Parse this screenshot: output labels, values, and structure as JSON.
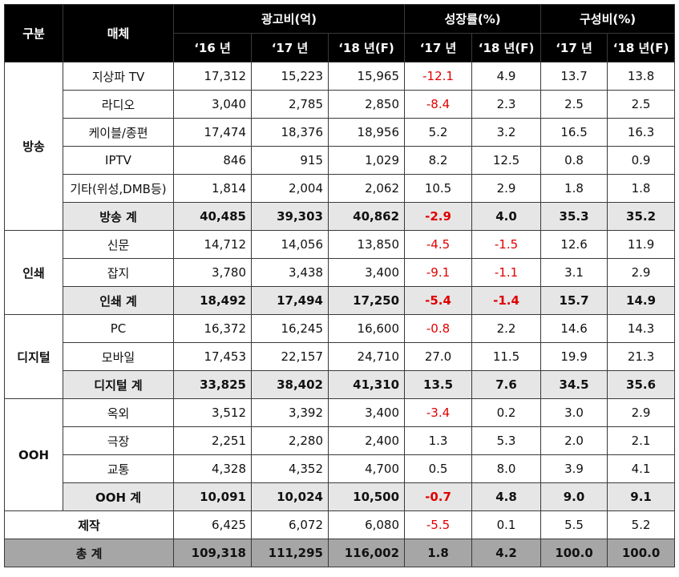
{
  "header": {
    "col_group": "구분",
    "col_media": "매체",
    "ad_cost": "광고비(억)",
    "growth": "성장률(%)",
    "share": "구성비(%)",
    "years_cost": [
      "‘16 년",
      "‘17 년",
      "‘18 년(F)"
    ],
    "years_growth": [
      "‘17 년",
      "‘18 년(F)"
    ],
    "years_share": [
      "‘17 년",
      "‘18 년(F)"
    ]
  },
  "groups": {
    "broadcast": "방송",
    "print": "인쇄",
    "digital": "디지털",
    "ooh": "OOH"
  },
  "rows": [
    {
      "media": "지상파 TV",
      "c16": "17,312",
      "c17": "15,223",
      "c18": "15,965",
      "g17": "-12.1",
      "g18": "4.9",
      "s17": "13.7",
      "s18": "13.8"
    },
    {
      "media": "라디오",
      "c16": "3,040",
      "c17": "2,785",
      "c18": "2,850",
      "g17": "-8.4",
      "g18": "2.3",
      "s17": "2.5",
      "s18": "2.5"
    },
    {
      "media": "케이블/종편",
      "c16": "17,474",
      "c17": "18,376",
      "c18": "18,956",
      "g17": "5.2",
      "g18": "3.2",
      "s17": "16.5",
      "s18": "16.3"
    },
    {
      "media": "IPTV",
      "c16": "846",
      "c17": "915",
      "c18": "1,029",
      "g17": "8.2",
      "g18": "12.5",
      "s17": "0.8",
      "s18": "0.9"
    },
    {
      "media": "기타(위성,DMB등)",
      "c16": "1,814",
      "c17": "2,004",
      "c18": "2,062",
      "g17": "10.5",
      "g18": "2.9",
      "s17": "1.8",
      "s18": "1.8"
    },
    {
      "media": "방송 계",
      "c16": "40,485",
      "c17": "39,303",
      "c18": "40,862",
      "g17": "-2.9",
      "g18": "4.0",
      "s17": "35.3",
      "s18": "35.2"
    },
    {
      "media": "신문",
      "c16": "14,712",
      "c17": "14,056",
      "c18": "13,850",
      "g17": "-4.5",
      "g18": "-1.5",
      "s17": "12.6",
      "s18": "11.9"
    },
    {
      "media": "잡지",
      "c16": "3,780",
      "c17": "3,438",
      "c18": "3,400",
      "g17": "-9.1",
      "g18": "-1.1",
      "s17": "3.1",
      "s18": "2.9"
    },
    {
      "media": "인쇄 계",
      "c16": "18,492",
      "c17": "17,494",
      "c18": "17,250",
      "g17": "-5.4",
      "g18": "-1.4",
      "s17": "15.7",
      "s18": "14.9"
    },
    {
      "media": "PC",
      "c16": "16,372",
      "c17": "16,245",
      "c18": "16,600",
      "g17": "-0.8",
      "g18": "2.2",
      "s17": "14.6",
      "s18": "14.3"
    },
    {
      "media": "모바일",
      "c16": "17,453",
      "c17": "22,157",
      "c18": "24,710",
      "g17": "27.0",
      "g18": "11.5",
      "s17": "19.9",
      "s18": "21.3"
    },
    {
      "media": "디지털 계",
      "c16": "33,825",
      "c17": "38,402",
      "c18": "41,310",
      "g17": "13.5",
      "g18": "7.6",
      "s17": "34.5",
      "s18": "35.6"
    },
    {
      "media": "옥외",
      "c16": "3,512",
      "c17": "3,392",
      "c18": "3,400",
      "g17": "-3.4",
      "g18": "0.2",
      "s17": "3.0",
      "s18": "2.9"
    },
    {
      "media": "극장",
      "c16": "2,251",
      "c17": "2,280",
      "c18": "2,400",
      "g17": "1.3",
      "g18": "5.3",
      "s17": "2.0",
      "s18": "2.1"
    },
    {
      "media": "교통",
      "c16": "4,328",
      "c17": "4,352",
      "c18": "4,700",
      "g17": "0.5",
      "g18": "8.0",
      "s17": "3.9",
      "s18": "4.1"
    },
    {
      "media": "OOH 계",
      "c16": "10,091",
      "c17": "10,024",
      "c18": "10,500",
      "g17": "-0.7",
      "g18": "4.8",
      "s17": "9.0",
      "s18": "9.1"
    },
    {
      "media": "제작",
      "c16": "6,425",
      "c17": "6,072",
      "c18": "6,080",
      "g17": "-5.5",
      "g18": "0.1",
      "s17": "5.5",
      "s18": "5.2"
    },
    {
      "media": "총 계",
      "c16": "109,318",
      "c17": "111,295",
      "c18": "116,002",
      "g17": "1.8",
      "g18": "4.2",
      "s17": "100.0",
      "s18": "100.0"
    }
  ],
  "colors": {
    "negative": "#e00000",
    "header_bg": "#000000",
    "subtotal_bg": "#e6e6e6",
    "total_bg": "#a6a6a6"
  }
}
